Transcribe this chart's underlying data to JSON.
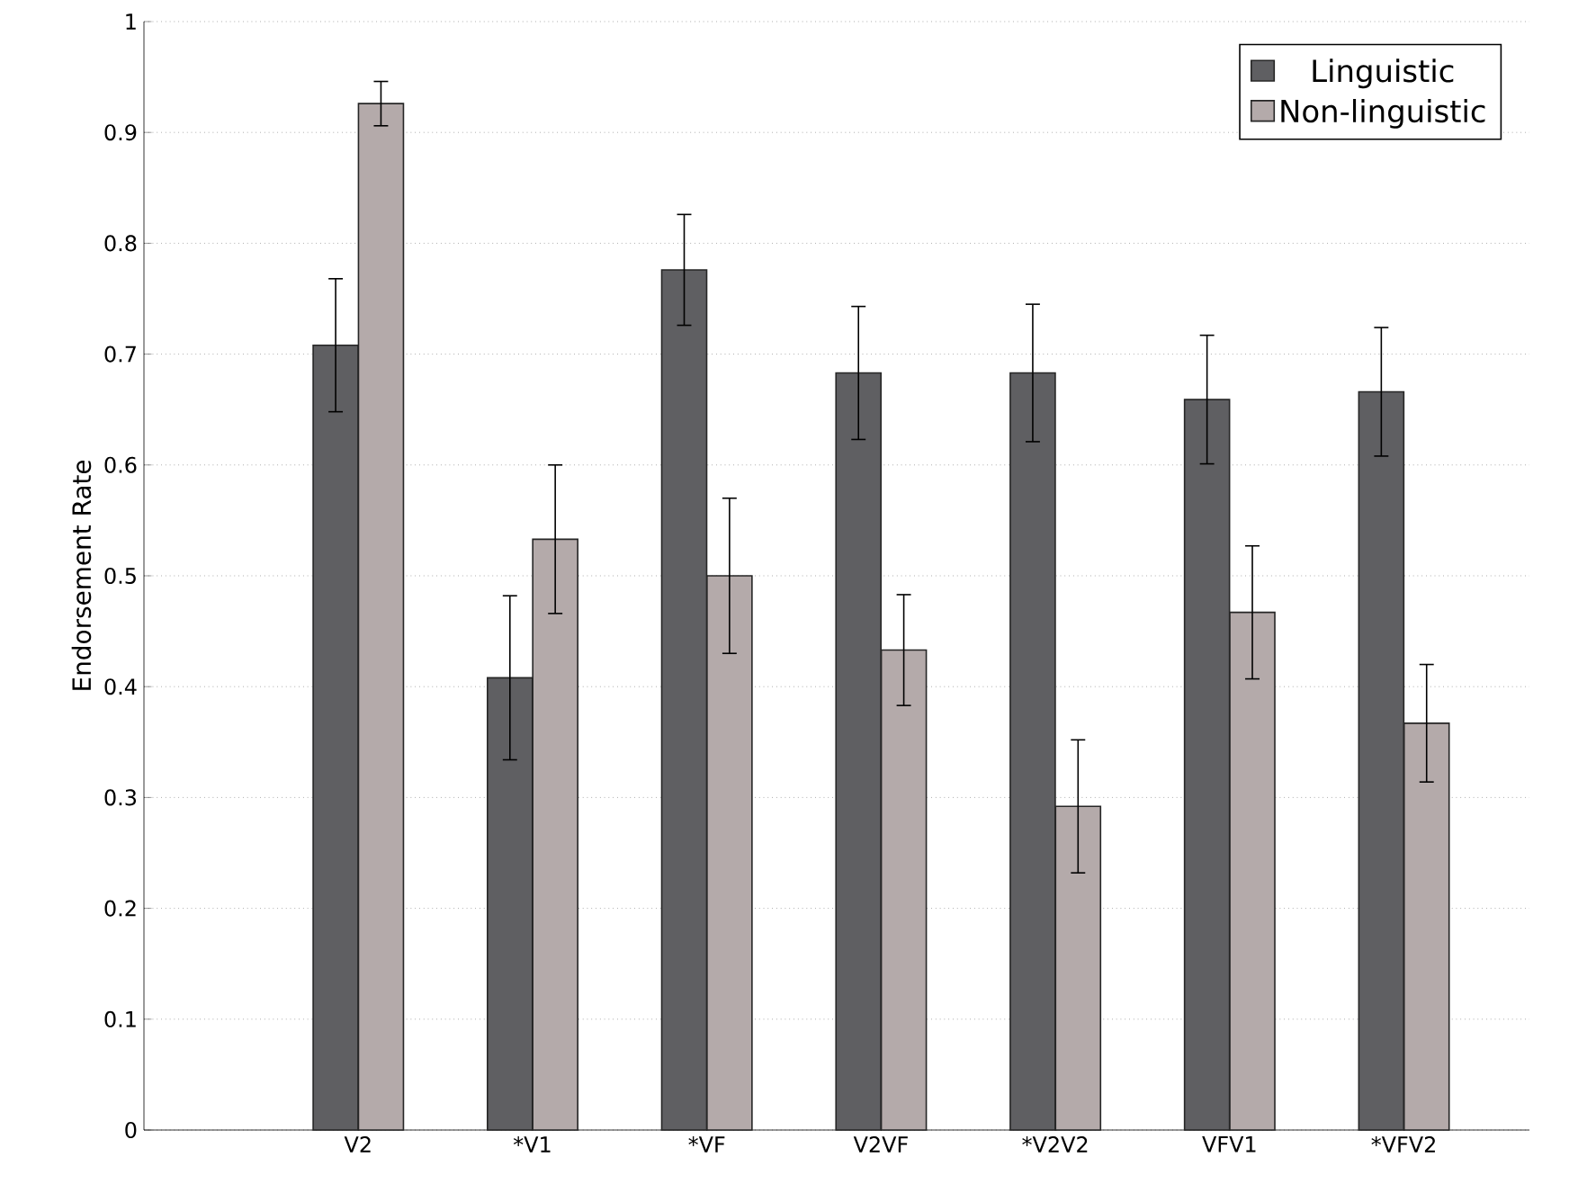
{
  "chart_data": {
    "type": "bar",
    "ylabel": "Endorsement Rate",
    "categories": [
      "V2",
      "*V1",
      "*VF",
      "V2VF",
      "*V2V2",
      "VFV1",
      "*VFV2"
    ],
    "series": [
      {
        "name": "Linguistic",
        "color": "#5f5f62",
        "values": [
          0.708,
          0.408,
          0.776,
          0.683,
          0.683,
          0.659,
          0.666
        ],
        "errors": [
          0.06,
          0.074,
          0.05,
          0.06,
          0.062,
          0.058,
          0.058
        ]
      },
      {
        "name": "Non-linguistic",
        "color": "#b4aaaa",
        "values": [
          0.926,
          0.533,
          0.5,
          0.433,
          0.292,
          0.467,
          0.367
        ],
        "errors": [
          0.02,
          0.067,
          0.07,
          0.05,
          0.06,
          0.06,
          0.053
        ]
      }
    ],
    "ylim": [
      0,
      1
    ],
    "yticks": [
      0,
      0.1,
      0.2,
      0.3,
      0.4,
      0.5,
      0.6,
      0.7,
      0.8,
      0.9,
      1
    ],
    "grid": "y",
    "legend": "top right"
  }
}
